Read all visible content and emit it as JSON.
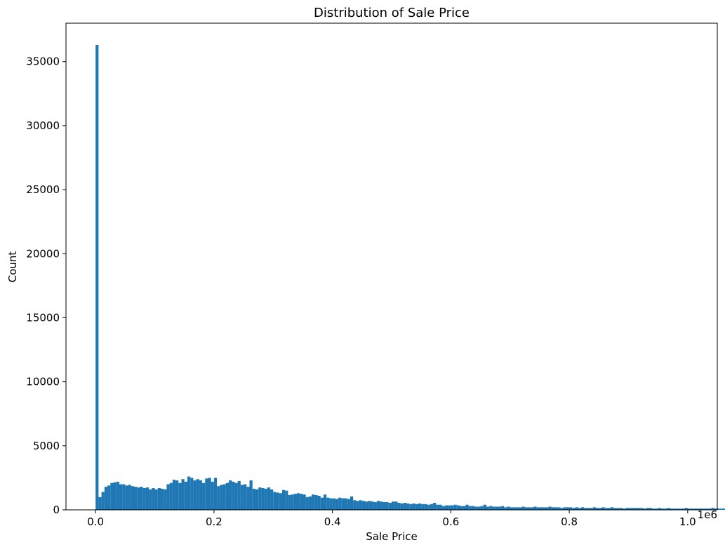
{
  "chart_data": {
    "type": "bar",
    "title": "Distribution of Sale Price",
    "xlabel": "Sale Price",
    "ylabel": "Count",
    "x_offset_label": "1e6",
    "xlim": [
      -0.05,
      1.05
    ],
    "ylim": [
      0,
      38000
    ],
    "x_ticks": [
      {
        "value": 0.0,
        "label": "0.0"
      },
      {
        "value": 0.2,
        "label": "0.2"
      },
      {
        "value": 0.4,
        "label": "0.4"
      },
      {
        "value": 0.6,
        "label": "0.6"
      },
      {
        "value": 0.8,
        "label": "0.8"
      },
      {
        "value": 1.0,
        "label": "1.0"
      }
    ],
    "y_ticks": [
      {
        "value": 0,
        "label": "0"
      },
      {
        "value": 5000,
        "label": "5000"
      },
      {
        "value": 10000,
        "label": "10000"
      },
      {
        "value": 15000,
        "label": "15000"
      },
      {
        "value": 20000,
        "label": "20000"
      },
      {
        "value": 25000,
        "label": "25000"
      },
      {
        "value": 30000,
        "label": "30000"
      },
      {
        "value": 35000,
        "label": "35000"
      }
    ],
    "bin_width": 0.005,
    "bin_start": 0.0,
    "bar_color": "#1f77b4",
    "grid": false,
    "values": [
      36300,
      1000,
      1400,
      1800,
      1900,
      2100,
      2150,
      2200,
      2000,
      2000,
      1900,
      1950,
      1850,
      1800,
      1750,
      1800,
      1700,
      1750,
      1600,
      1700,
      1600,
      1700,
      1650,
      1600,
      2000,
      2100,
      2350,
      2300,
      2100,
      2400,
      2200,
      2600,
      2500,
      2300,
      2400,
      2300,
      2100,
      2450,
      2500,
      2200,
      2500,
      1850,
      1950,
      2000,
      2100,
      2300,
      2200,
      2100,
      2250,
      1950,
      2000,
      1800,
      2300,
      1650,
      1600,
      1750,
      1700,
      1650,
      1750,
      1600,
      1400,
      1350,
      1300,
      1550,
      1500,
      1150,
      1200,
      1250,
      1300,
      1250,
      1200,
      1000,
      1050,
      1200,
      1150,
      1100,
      950,
      1200,
      950,
      900,
      900,
      850,
      950,
      900,
      900,
      850,
      1050,
      750,
      700,
      750,
      700,
      650,
      700,
      650,
      600,
      700,
      650,
      600,
      600,
      550,
      650,
      650,
      550,
      500,
      550,
      500,
      450,
      500,
      450,
      500,
      450,
      450,
      400,
      450,
      550,
      400,
      400,
      300,
      350,
      350,
      350,
      400,
      350,
      300,
      300,
      400,
      300,
      300,
      250,
      250,
      300,
      400,
      250,
      300,
      250,
      250,
      250,
      300,
      200,
      250,
      200,
      200,
      200,
      200,
      250,
      200,
      200,
      200,
      250,
      200,
      200,
      200,
      200,
      250,
      200,
      200,
      200,
      150,
      200,
      200,
      200,
      150,
      200,
      150,
      200,
      150,
      150,
      150,
      200,
      150,
      150,
      200,
      150,
      150,
      200,
      150,
      150,
      150,
      100,
      150,
      150,
      150,
      150,
      150,
      150,
      100,
      150,
      150,
      100,
      100,
      150,
      100,
      100,
      150,
      100,
      100,
      100,
      100,
      100,
      150,
      100,
      100,
      100,
      100,
      100,
      100,
      100,
      100,
      150,
      100,
      100,
      100,
      100,
      100,
      100,
      100
    ]
  }
}
